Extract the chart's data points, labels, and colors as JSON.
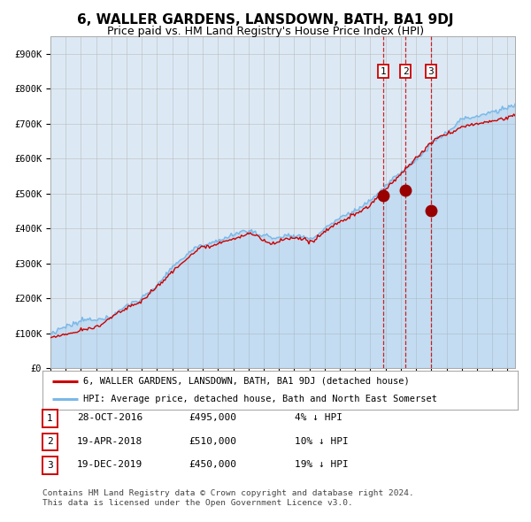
{
  "title": "6, WALLER GARDENS, LANSDOWN, BATH, BA1 9DJ",
  "subtitle": "Price paid vs. HM Land Registry's House Price Index (HPI)",
  "title_fontsize": 11,
  "subtitle_fontsize": 9,
  "background_color": "#ffffff",
  "plot_bg_color": "#dce9f5",
  "ylim": [
    0,
    950000
  ],
  "yticks": [
    0,
    100000,
    200000,
    300000,
    400000,
    500000,
    600000,
    700000,
    800000,
    900000
  ],
  "ytick_labels": [
    "£0",
    "£100K",
    "£200K",
    "£300K",
    "£400K",
    "£500K",
    "£600K",
    "£700K",
    "£800K",
    "£900K"
  ],
  "hpi_color": "#7ab8e8",
  "price_color": "#cc0000",
  "marker_color": "#990000",
  "vline_color": "#cc0000",
  "grid_color": "#bbbbbb",
  "xlim_start": 1995,
  "xlim_end": 2025.5,
  "transactions": [
    {
      "label": "1",
      "date_str": "28-OCT-2016",
      "date_x": 2016.83,
      "price": 495000,
      "pct": "4%",
      "dir": "↓"
    },
    {
      "label": "2",
      "date_str": "19-APR-2018",
      "date_x": 2018.3,
      "price": 510000,
      "pct": "10%",
      "dir": "↓"
    },
    {
      "label": "3",
      "date_str": "19-DEC-2019",
      "date_x": 2019.97,
      "price": 450000,
      "pct": "19%",
      "dir": "↓"
    }
  ],
  "footer": "Contains HM Land Registry data © Crown copyright and database right 2024.\nThis data is licensed under the Open Government Licence v3.0.",
  "legend_entries": [
    {
      "label": "6, WALLER GARDENS, LANSDOWN, BATH, BA1 9DJ (detached house)",
      "color": "#cc0000"
    },
    {
      "label": "HPI: Average price, detached house, Bath and North East Somerset",
      "color": "#7ab8e8"
    }
  ]
}
